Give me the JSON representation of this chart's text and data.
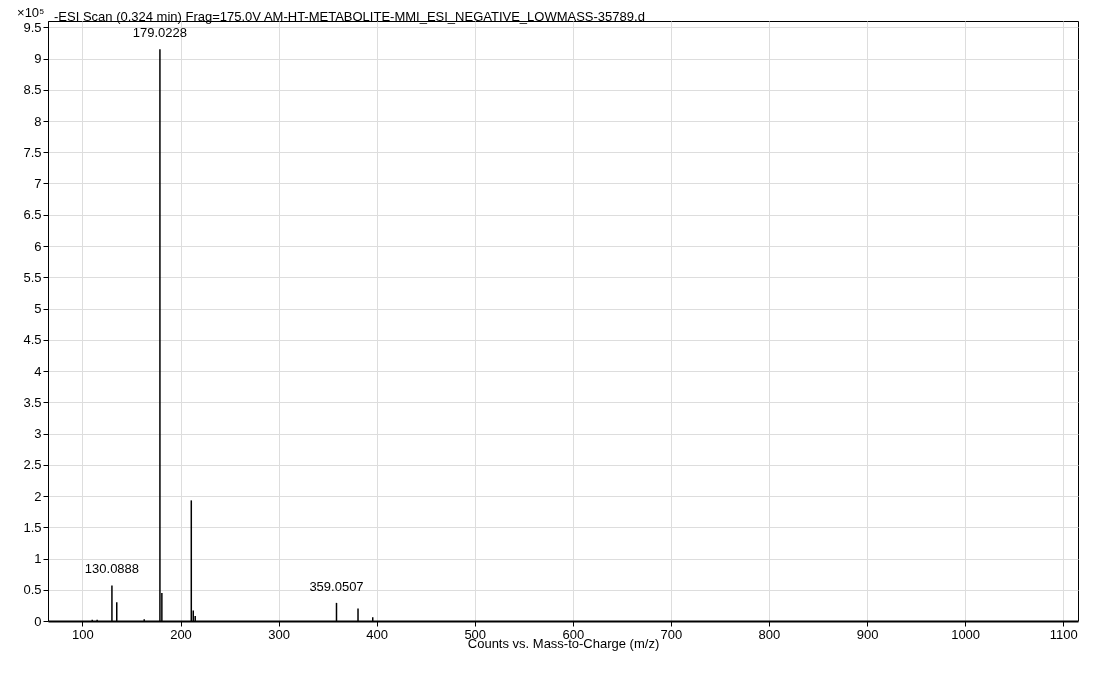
{
  "chart_data": {
    "type": "bar",
    "title": "-ESI Scan (0.324 min) Frag=175.0V AM-HT-METABOLITE-MMI_ESI_NEGATIVE_LOWMASS-35789.d",
    "xlabel": "Counts vs. Mass-to-Charge (m/z)",
    "ylabel": "×10⁵",
    "x": [
      110,
      115,
      130.0888,
      135,
      163,
      179.0228,
      181,
      211,
      213,
      215,
      359.0507,
      381,
      396
    ],
    "series": [
      {
        "color": "#000000",
        "values": [
          0.02,
          0.02,
          0.57,
          0.3,
          0.03,
          9.15,
          0.45,
          1.93,
          0.17,
          0.08,
          0.29,
          0.2,
          0.06
        ]
      }
    ],
    "annotations": [
      {
        "text": "179.0228",
        "x": 179.0228,
        "y": 9.15
      },
      {
        "text": "130.0888",
        "x": 130.0888,
        "y": 0.57
      },
      {
        "text": "359.0507",
        "x": 359.0507,
        "y": 0.29
      }
    ],
    "xlim": [
      70,
      1110
    ],
    "xticks": [
      100,
      200,
      300,
      400,
      500,
      600,
      700,
      800,
      900,
      1000,
      1100
    ],
    "ylim": [
      0,
      9.6
    ],
    "yticks": [
      0,
      0.5,
      1,
      1.5,
      2,
      2.5,
      3,
      3.5,
      4,
      4.5,
      5,
      5.5,
      6,
      6.5,
      7,
      7.5,
      8,
      8.5,
      9,
      9.5
    ],
    "grid": true
  }
}
